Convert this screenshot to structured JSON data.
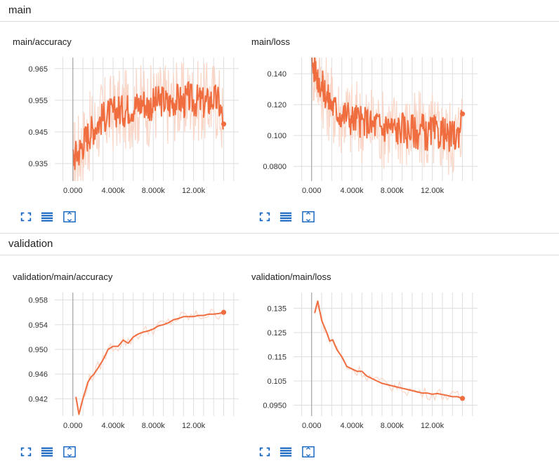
{
  "sections": [
    {
      "name": "main"
    },
    {
      "name": "validation"
    }
  ],
  "colors": {
    "line": "#f06d3f",
    "raw": "#f9d6c7"
  },
  "icons": [
    "expand-icon",
    "list-icon",
    "fit-domain-icon"
  ],
  "chart_data": [
    {
      "type": "line",
      "title": "main/accuracy",
      "xlim": [
        -1800,
        16500
      ],
      "ylim": [
        0.9295,
        0.9685
      ],
      "x_ticks": [
        0,
        4000,
        8000,
        12000
      ],
      "x_tick_labels": [
        "0.000",
        "4.000k",
        "8.000k",
        "12.00k"
      ],
      "y_ticks": [
        0.935,
        0.945,
        0.955,
        0.965
      ],
      "y_tick_labels": [
        "0.935",
        "0.945",
        "0.955",
        "0.965"
      ],
      "grid": true,
      "series": [
        {
          "x": [
            0,
            400,
            800,
            1200,
            1600,
            2000,
            2500,
            3000,
            3500,
            4000,
            4500,
            5000,
            5500,
            6000,
            6500,
            7000,
            7500,
            8000,
            8500,
            9000,
            9500,
            10000,
            10500,
            11000,
            11500,
            12000,
            12500,
            13000,
            13500,
            14000,
            14500,
            15000
          ],
          "y": [
            0.937,
            0.938,
            0.94,
            0.9425,
            0.9445,
            0.946,
            0.948,
            0.9495,
            0.9505,
            0.951,
            0.952,
            0.9515,
            0.9525,
            0.953,
            0.9535,
            0.9545,
            0.953,
            0.954,
            0.9545,
            0.955,
            0.9535,
            0.955,
            0.9555,
            0.954,
            0.956,
            0.9545,
            0.955,
            0.954,
            0.9545,
            0.9555,
            0.9545,
            0.9475
          ]
        }
      ]
    },
    {
      "type": "line",
      "title": "main/loss",
      "xlim": [
        -1800,
        16500
      ],
      "ylim": [
        0.0705,
        0.1505
      ],
      "x_ticks": [
        0,
        4000,
        8000,
        12000
      ],
      "x_tick_labels": [
        "0.000",
        "4.000k",
        "8.000k",
        "12.00k"
      ],
      "y_ticks": [
        0.08,
        0.1,
        0.12,
        0.14
      ],
      "y_tick_labels": [
        "0.0800",
        "0.100",
        "0.120",
        "0.140"
      ],
      "grid": true,
      "series": [
        {
          "x": [
            0,
            400,
            800,
            1200,
            1600,
            2000,
            2500,
            3000,
            3500,
            4000,
            4500,
            5000,
            5500,
            6000,
            6500,
            7000,
            7500,
            8000,
            8500,
            9000,
            9500,
            10000,
            10500,
            11000,
            11500,
            12000,
            12500,
            13000,
            13500,
            14000,
            14500,
            15000
          ],
          "y": [
            0.148,
            0.142,
            0.135,
            0.13,
            0.124,
            0.12,
            0.116,
            0.113,
            0.114,
            0.11,
            0.111,
            0.108,
            0.109,
            0.106,
            0.108,
            0.104,
            0.107,
            0.105,
            0.103,
            0.106,
            0.102,
            0.104,
            0.101,
            0.105,
            0.099,
            0.104,
            0.1,
            0.103,
            0.098,
            0.1,
            0.099,
            0.114
          ]
        }
      ]
    },
    {
      "type": "line",
      "title": "validation/main/accuracy",
      "xlim": [
        -1800,
        16500
      ],
      "ylim": [
        0.9392,
        0.9592
      ],
      "x_ticks": [
        0,
        4000,
        8000,
        12000
      ],
      "x_tick_labels": [
        "0.000",
        "4.000k",
        "8.000k",
        "12.00k"
      ],
      "y_ticks": [
        0.942,
        0.946,
        0.95,
        0.954,
        0.958
      ],
      "y_tick_labels": [
        "0.942",
        "0.946",
        "0.950",
        "0.954",
        "0.958"
      ],
      "grid": true,
      "series": [
        {
          "x": [
            300,
            600,
            1000,
            1500,
            1800,
            2100,
            2500,
            3000,
            3500,
            4000,
            4500,
            5000,
            5500,
            6000,
            6500,
            7000,
            7500,
            8000,
            8500,
            9000,
            9500,
            10000,
            10500,
            11000,
            11500,
            12000,
            12500,
            13000,
            13500,
            14000,
            14500,
            15000
          ],
          "y": [
            0.9423,
            0.9395,
            0.942,
            0.9447,
            0.9455,
            0.946,
            0.947,
            0.9483,
            0.95,
            0.9505,
            0.9505,
            0.9515,
            0.951,
            0.952,
            0.9525,
            0.9528,
            0.953,
            0.9533,
            0.9538,
            0.954,
            0.9543,
            0.9548,
            0.955,
            0.9553,
            0.9553,
            0.9553,
            0.9555,
            0.9555,
            0.9557,
            0.9557,
            0.9558,
            0.956
          ]
        }
      ]
    },
    {
      "type": "line",
      "title": "validation/main/loss",
      "xlim": [
        -1800,
        16500
      ],
      "ylim": [
        0.0905,
        0.1415
      ],
      "x_ticks": [
        0,
        4000,
        8000,
        12000
      ],
      "x_tick_labels": [
        "0.000",
        "4.000k",
        "8.000k",
        "12.00k"
      ],
      "y_ticks": [
        0.095,
        0.105,
        0.115,
        0.125,
        0.135
      ],
      "y_tick_labels": [
        "0.0950",
        "0.105",
        "0.115",
        "0.125",
        "0.135"
      ],
      "grid": true,
      "series": [
        {
          "x": [
            300,
            600,
            1000,
            1500,
            1800,
            2100,
            2500,
            3000,
            3500,
            4000,
            4500,
            5000,
            5500,
            6000,
            6500,
            7000,
            7500,
            8000,
            8500,
            9000,
            9500,
            10000,
            10500,
            11000,
            11500,
            12000,
            12500,
            13000,
            13500,
            14000,
            14500,
            15000
          ],
          "y": [
            0.133,
            0.138,
            0.13,
            0.125,
            0.1215,
            0.122,
            0.118,
            0.115,
            0.111,
            0.11,
            0.109,
            0.109,
            0.107,
            0.106,
            0.105,
            0.104,
            0.1035,
            0.103,
            0.1025,
            0.102,
            0.1015,
            0.101,
            0.1005,
            0.1,
            0.1,
            0.0995,
            0.0998,
            0.0994,
            0.099,
            0.0985,
            0.0985,
            0.0978
          ]
        }
      ]
    }
  ]
}
